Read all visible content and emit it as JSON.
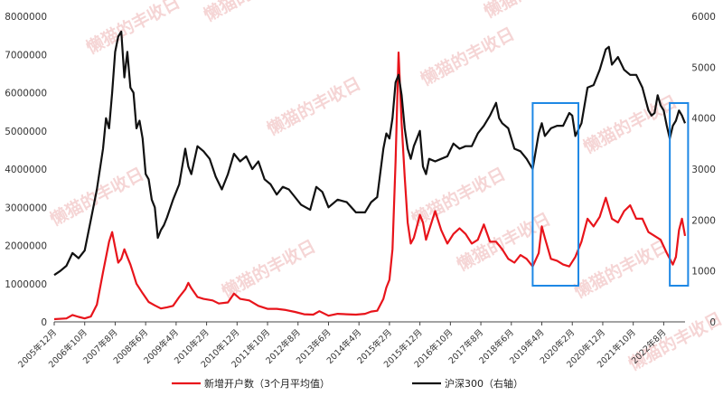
{
  "chart_data": {
    "type": "line",
    "title": "",
    "left_axis": {
      "ylim": [
        0,
        8000000
      ],
      "ticks": [
        "0",
        "1000000",
        "2000000",
        "3000000",
        "4000000",
        "5000000",
        "6000000",
        "7000000",
        "8000000"
      ]
    },
    "right_axis": {
      "ylim": [
        0,
        6000
      ],
      "ticks": [
        "0",
        "1000",
        "2000",
        "3000",
        "4000",
        "5000",
        "6000"
      ]
    },
    "x_tick_labels": [
      "2005年12月",
      "2006年10月",
      "2007年8月",
      "2008年6月",
      "2009年4月",
      "2010年2月",
      "2010年12月",
      "2011年10月",
      "2012年8月",
      "2013年6月",
      "2014年4月",
      "2015年2月",
      "2015年12月",
      "2016年10月",
      "2017年8月",
      "2018年6月",
      "2019年4月",
      "2020年2月",
      "2020年12月",
      "2021年10月",
      "2022年8月"
    ],
    "x_start": "2005-12",
    "x_end": "2023-03",
    "grid": false,
    "legend_position": "bottom",
    "series": [
      {
        "name": "新增开户数（3个月平均值）",
        "axis": "left",
        "color": "#e8141b",
        "points": [
          [
            "2005-12",
            70000
          ],
          [
            "2006-04",
            90000
          ],
          [
            "2006-06",
            180000
          ],
          [
            "2006-08",
            130000
          ],
          [
            "2006-10",
            90000
          ],
          [
            "2006-12",
            140000
          ],
          [
            "2007-02",
            450000
          ],
          [
            "2007-04",
            1300000
          ],
          [
            "2007-06",
            2100000
          ],
          [
            "2007-07",
            2350000
          ],
          [
            "2007-08",
            1950000
          ],
          [
            "2007-09",
            1550000
          ],
          [
            "2007-10",
            1650000
          ],
          [
            "2007-11",
            1900000
          ],
          [
            "2007-12",
            1700000
          ],
          [
            "2008-01",
            1500000
          ],
          [
            "2008-02",
            1250000
          ],
          [
            "2008-03",
            1000000
          ],
          [
            "2008-05",
            750000
          ],
          [
            "2008-07",
            520000
          ],
          [
            "2008-09",
            430000
          ],
          [
            "2008-11",
            350000
          ],
          [
            "2009-01",
            380000
          ],
          [
            "2009-03",
            420000
          ],
          [
            "2009-05",
            650000
          ],
          [
            "2009-07",
            850000
          ],
          [
            "2009-08",
            1020000
          ],
          [
            "2009-09",
            880000
          ],
          [
            "2009-11",
            650000
          ],
          [
            "2010-01",
            600000
          ],
          [
            "2010-04",
            560000
          ],
          [
            "2010-06",
            480000
          ],
          [
            "2010-09",
            510000
          ],
          [
            "2010-11",
            740000
          ],
          [
            "2011-01",
            600000
          ],
          [
            "2011-04",
            560000
          ],
          [
            "2011-07",
            420000
          ],
          [
            "2011-10",
            340000
          ],
          [
            "2012-01",
            340000
          ],
          [
            "2012-04",
            310000
          ],
          [
            "2012-07",
            260000
          ],
          [
            "2012-10",
            200000
          ],
          [
            "2013-01",
            190000
          ],
          [
            "2013-03",
            280000
          ],
          [
            "2013-06",
            160000
          ],
          [
            "2013-09",
            210000
          ],
          [
            "2013-12",
            200000
          ],
          [
            "2014-03",
            190000
          ],
          [
            "2014-06",
            210000
          ],
          [
            "2014-08",
            270000
          ],
          [
            "2014-10",
            290000
          ],
          [
            "2014-12",
            600000
          ],
          [
            "2015-01",
            900000
          ],
          [
            "2015-02",
            1100000
          ],
          [
            "2015-03",
            1900000
          ],
          [
            "2015-04",
            4200000
          ],
          [
            "2015-05",
            7050000
          ],
          [
            "2015-06",
            5200000
          ],
          [
            "2015-07",
            3800000
          ],
          [
            "2015-08",
            2600000
          ],
          [
            "2015-09",
            2050000
          ],
          [
            "2015-10",
            2200000
          ],
          [
            "2015-11",
            2500000
          ],
          [
            "2015-12",
            2800000
          ],
          [
            "2016-01",
            2600000
          ],
          [
            "2016-02",
            2150000
          ],
          [
            "2016-03",
            2400000
          ],
          [
            "2016-05",
            2900000
          ],
          [
            "2016-07",
            2400000
          ],
          [
            "2016-09",
            2050000
          ],
          [
            "2016-11",
            2300000
          ],
          [
            "2017-01",
            2450000
          ],
          [
            "2017-03",
            2300000
          ],
          [
            "2017-05",
            2050000
          ],
          [
            "2017-07",
            2150000
          ],
          [
            "2017-09",
            2550000
          ],
          [
            "2017-11",
            2100000
          ],
          [
            "2018-01",
            2100000
          ],
          [
            "2018-03",
            1900000
          ],
          [
            "2018-05",
            1650000
          ],
          [
            "2018-07",
            1550000
          ],
          [
            "2018-09",
            1750000
          ],
          [
            "2018-11",
            1650000
          ],
          [
            "2019-01",
            1450000
          ],
          [
            "2019-03",
            1800000
          ],
          [
            "2019-04",
            2500000
          ],
          [
            "2019-05",
            2200000
          ],
          [
            "2019-07",
            1650000
          ],
          [
            "2019-09",
            1600000
          ],
          [
            "2019-11",
            1500000
          ],
          [
            "2020-01",
            1450000
          ],
          [
            "2020-03",
            1700000
          ],
          [
            "2020-05",
            2100000
          ],
          [
            "2020-07",
            2700000
          ],
          [
            "2020-09",
            2500000
          ],
          [
            "2020-11",
            2750000
          ],
          [
            "2021-01",
            3250000
          ],
          [
            "2021-03",
            2700000
          ],
          [
            "2021-05",
            2600000
          ],
          [
            "2021-07",
            2900000
          ],
          [
            "2021-09",
            3050000
          ],
          [
            "2021-11",
            2700000
          ],
          [
            "2022-01",
            2700000
          ],
          [
            "2022-03",
            2350000
          ],
          [
            "2022-05",
            2250000
          ],
          [
            "2022-07",
            2150000
          ],
          [
            "2022-09",
            1800000
          ],
          [
            "2022-11",
            1500000
          ],
          [
            "2022-12",
            1700000
          ],
          [
            "2023-01",
            2400000
          ],
          [
            "2023-02",
            2700000
          ],
          [
            "2023-03",
            2250000
          ]
        ]
      },
      {
        "name": "沪深300（右轴）",
        "axis": "right",
        "color": "#111111",
        "points": [
          [
            "2005-12",
            920
          ],
          [
            "2006-02",
            1000
          ],
          [
            "2006-04",
            1100
          ],
          [
            "2006-06",
            1350
          ],
          [
            "2006-08",
            1250
          ],
          [
            "2006-10",
            1400
          ],
          [
            "2006-12",
            2000
          ],
          [
            "2007-02",
            2600
          ],
          [
            "2007-04",
            3400
          ],
          [
            "2007-05",
            4000
          ],
          [
            "2007-06",
            3800
          ],
          [
            "2007-07",
            4500
          ],
          [
            "2007-08",
            5300
          ],
          [
            "2007-09",
            5600
          ],
          [
            "2007-10",
            5700
          ],
          [
            "2007-11",
            4800
          ],
          [
            "2007-12",
            5300
          ],
          [
            "2008-01",
            4600
          ],
          [
            "2008-02",
            4500
          ],
          [
            "2008-03",
            3800
          ],
          [
            "2008-04",
            3950
          ],
          [
            "2008-05",
            3600
          ],
          [
            "2008-06",
            2900
          ],
          [
            "2008-07",
            2800
          ],
          [
            "2008-08",
            2400
          ],
          [
            "2008-09",
            2250
          ],
          [
            "2008-10",
            1650
          ],
          [
            "2008-11",
            1800
          ],
          [
            "2008-12",
            1900
          ],
          [
            "2009-01",
            2050
          ],
          [
            "2009-03",
            2400
          ],
          [
            "2009-05",
            2700
          ],
          [
            "2009-07",
            3400
          ],
          [
            "2009-08",
            3050
          ],
          [
            "2009-09",
            2900
          ],
          [
            "2009-11",
            3450
          ],
          [
            "2010-01",
            3350
          ],
          [
            "2010-03",
            3200
          ],
          [
            "2010-05",
            2850
          ],
          [
            "2010-07",
            2600
          ],
          [
            "2010-09",
            2900
          ],
          [
            "2010-11",
            3300
          ],
          [
            "2011-01",
            3150
          ],
          [
            "2011-03",
            3250
          ],
          [
            "2011-05",
            3000
          ],
          [
            "2011-07",
            3150
          ],
          [
            "2011-09",
            2800
          ],
          [
            "2011-11",
            2700
          ],
          [
            "2012-01",
            2500
          ],
          [
            "2012-03",
            2650
          ],
          [
            "2012-05",
            2600
          ],
          [
            "2012-07",
            2450
          ],
          [
            "2012-09",
            2300
          ],
          [
            "2012-12",
            2200
          ],
          [
            "2013-02",
            2650
          ],
          [
            "2013-04",
            2550
          ],
          [
            "2013-06",
            2250
          ],
          [
            "2013-09",
            2400
          ],
          [
            "2013-12",
            2350
          ],
          [
            "2014-03",
            2150
          ],
          [
            "2014-06",
            2150
          ],
          [
            "2014-08",
            2350
          ],
          [
            "2014-10",
            2450
          ],
          [
            "2014-12",
            3400
          ],
          [
            "2015-01",
            3700
          ],
          [
            "2015-02",
            3600
          ],
          [
            "2015-03",
            4000
          ],
          [
            "2015-04",
            4700
          ],
          [
            "2015-05",
            4850
          ],
          [
            "2015-06",
            4450
          ],
          [
            "2015-07",
            3800
          ],
          [
            "2015-08",
            3400
          ],
          [
            "2015-09",
            3200
          ],
          [
            "2015-10",
            3450
          ],
          [
            "2015-11",
            3600
          ],
          [
            "2015-12",
            3750
          ],
          [
            "2016-01",
            3050
          ],
          [
            "2016-02",
            2900
          ],
          [
            "2016-03",
            3200
          ],
          [
            "2016-05",
            3150
          ],
          [
            "2016-07",
            3200
          ],
          [
            "2016-09",
            3250
          ],
          [
            "2016-11",
            3500
          ],
          [
            "2017-01",
            3400
          ],
          [
            "2017-03",
            3450
          ],
          [
            "2017-05",
            3450
          ],
          [
            "2017-07",
            3700
          ],
          [
            "2017-09",
            3850
          ],
          [
            "2017-11",
            4050
          ],
          [
            "2018-01",
            4300
          ],
          [
            "2018-02",
            4000
          ],
          [
            "2018-03",
            3900
          ],
          [
            "2018-05",
            3800
          ],
          [
            "2018-07",
            3400
          ],
          [
            "2018-09",
            3350
          ],
          [
            "2018-11",
            3200
          ],
          [
            "2019-01",
            3000
          ],
          [
            "2019-03",
            3700
          ],
          [
            "2019-04",
            3900
          ],
          [
            "2019-05",
            3650
          ],
          [
            "2019-07",
            3800
          ],
          [
            "2019-09",
            3850
          ],
          [
            "2019-11",
            3850
          ],
          [
            "2020-01",
            4100
          ],
          [
            "2020-02",
            4050
          ],
          [
            "2020-03",
            3650
          ],
          [
            "2020-05",
            3900
          ],
          [
            "2020-07",
            4600
          ],
          [
            "2020-09",
            4650
          ],
          [
            "2020-11",
            4950
          ],
          [
            "2021-01",
            5350
          ],
          [
            "2021-02",
            5400
          ],
          [
            "2021-03",
            5050
          ],
          [
            "2021-05",
            5200
          ],
          [
            "2021-07",
            4950
          ],
          [
            "2021-09",
            4850
          ],
          [
            "2021-11",
            4850
          ],
          [
            "2022-01",
            4600
          ],
          [
            "2022-03",
            4150
          ],
          [
            "2022-04",
            4050
          ],
          [
            "2022-05",
            4100
          ],
          [
            "2022-06",
            4450
          ],
          [
            "2022-07",
            4250
          ],
          [
            "2022-08",
            4150
          ],
          [
            "2022-09",
            3850
          ],
          [
            "2022-10",
            3600
          ],
          [
            "2022-11",
            3850
          ],
          [
            "2022-12",
            3950
          ],
          [
            "2023-01",
            4150
          ],
          [
            "2023-02",
            4050
          ],
          [
            "2023-03",
            3900
          ]
        ]
      }
    ],
    "highlight_boxes": [
      {
        "from": "2019-01",
        "to": "2020-04",
        "color": "#1e88e5"
      },
      {
        "from": "2022-10",
        "to": "2023-04",
        "color": "#1e88e5"
      }
    ]
  },
  "watermarks": [
    "懒猫的丰收日",
    "懒猫的丰收日",
    "懒猫的丰收日",
    "懒猫的丰收日",
    "懒猫的丰收日",
    "懒猫的丰收日",
    "懒猫的丰收日",
    "懒猫的丰收日",
    "懒猫的丰收日",
    "懒猫的丰收日",
    "懒猫的丰收日",
    "懒猫的丰收日"
  ]
}
